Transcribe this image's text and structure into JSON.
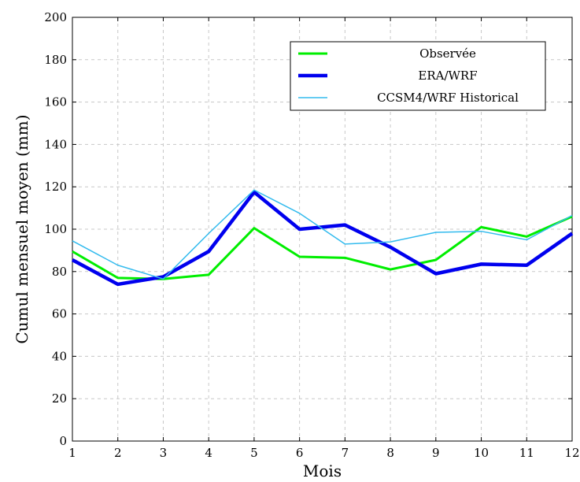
{
  "chart_data": {
    "type": "line",
    "xlabel": "Mois",
    "ylabel": "Cumul mensuel moyen (mm)",
    "xlim": [
      1,
      12
    ],
    "ylim": [
      0,
      200
    ],
    "x_ticks": [
      1,
      2,
      3,
      4,
      5,
      6,
      7,
      8,
      9,
      10,
      11,
      12
    ],
    "y_ticks": [
      0,
      20,
      40,
      60,
      80,
      100,
      120,
      140,
      160,
      180,
      200
    ],
    "grid": true,
    "legend_position": "top-right",
    "x": [
      1,
      2,
      3,
      4,
      5,
      6,
      7,
      8,
      9,
      10,
      11,
      12
    ],
    "series": [
      {
        "name": "Observée",
        "color": "#00ee00",
        "values": [
          89.5,
          77,
          76.5,
          78.5,
          100.5,
          87,
          86.5,
          81,
          85.5,
          101,
          96.5,
          106
        ]
      },
      {
        "name": "ERA/WRF",
        "color": "#0000ee",
        "values": [
          85.5,
          74,
          77.5,
          89.5,
          117.5,
          100,
          102,
          91.5,
          79,
          83.5,
          83,
          98
        ]
      },
      {
        "name": "CCSM4/WRF Historical",
        "color": "#33bbee",
        "values": [
          94.5,
          83,
          76.5,
          98,
          118.5,
          107.5,
          93,
          94,
          98.5,
          99,
          95,
          106.5
        ]
      }
    ]
  }
}
